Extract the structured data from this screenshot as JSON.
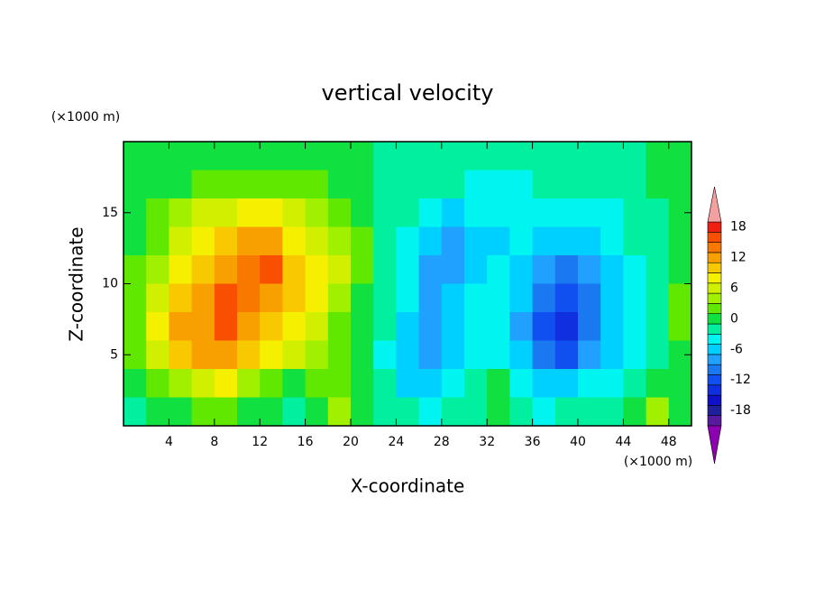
{
  "chart_data": {
    "type": "contour",
    "title": "vertical velocity",
    "xlabel": "X-coordinate",
    "ylabel": "Z-coordinate",
    "x_unit": "(×1000 m)",
    "y_unit": "(×1000 m)",
    "xlim": [
      0,
      50
    ],
    "ylim": [
      0,
      20
    ],
    "xticks": [
      4,
      8,
      12,
      16,
      20,
      24,
      28,
      32,
      36,
      40,
      44,
      48
    ],
    "yticks": [
      5,
      10,
      15
    ],
    "x": [
      1,
      3,
      5,
      7,
      9,
      11,
      13,
      15,
      17,
      19,
      21,
      23,
      25,
      27,
      29,
      31,
      33,
      35,
      37,
      39,
      41,
      43,
      45,
      47,
      49
    ],
    "y": [
      19,
      17,
      15,
      13,
      11,
      9,
      7,
      5,
      3,
      1
    ],
    "z": [
      [
        1,
        1,
        1,
        1,
        1,
        1,
        1,
        1,
        1,
        1,
        1,
        -1,
        -1,
        -1,
        -1,
        -1,
        -1,
        -1,
        -1,
        -1,
        -1,
        -1,
        -1,
        1,
        1
      ],
      [
        1,
        1,
        1,
        3,
        3,
        3,
        3,
        3,
        3,
        1,
        1,
        -1,
        -1,
        -1,
        -1,
        -3,
        -3,
        -3,
        -1,
        -1,
        -1,
        -1,
        -1,
        1,
        1
      ],
      [
        1,
        3,
        5,
        7,
        7,
        9,
        9,
        7,
        5,
        3,
        1,
        -1,
        -1,
        -3,
        -5,
        -3,
        -3,
        -3,
        -3,
        -3,
        -3,
        -3,
        -1,
        -1,
        1
      ],
      [
        1,
        3,
        7,
        9,
        11,
        13,
        13,
        9,
        7,
        5,
        3,
        -1,
        -3,
        -5,
        -7,
        -5,
        -5,
        -3,
        -5,
        -5,
        -5,
        -3,
        -1,
        -1,
        1
      ],
      [
        3,
        5,
        9,
        11,
        13,
        15,
        17,
        11,
        9,
        7,
        3,
        -1,
        -3,
        -7,
        -7,
        -5,
        -3,
        -5,
        -7,
        -9,
        -7,
        -5,
        -3,
        -1,
        1
      ],
      [
        3,
        7,
        11,
        13,
        17,
        15,
        13,
        11,
        9,
        5,
        1,
        -1,
        -3,
        -7,
        -5,
        -3,
        -3,
        -5,
        -9,
        -11,
        -9,
        -5,
        -3,
        -1,
        3
      ],
      [
        3,
        9,
        13,
        13,
        17,
        13,
        11,
        9,
        7,
        3,
        1,
        -1,
        -5,
        -7,
        -5,
        -3,
        -3,
        -7,
        -11,
        -13,
        -9,
        -5,
        -3,
        -1,
        3
      ],
      [
        3,
        7,
        11,
        13,
        13,
        11,
        9,
        7,
        5,
        3,
        1,
        -3,
        -5,
        -7,
        -5,
        -3,
        -3,
        -5,
        -9,
        -11,
        -7,
        -5,
        -3,
        -1,
        1
      ],
      [
        1,
        3,
        5,
        7,
        9,
        5,
        3,
        1,
        3,
        3,
        1,
        -1,
        -5,
        -5,
        -3,
        -1,
        1,
        -3,
        -5,
        -5,
        -3,
        -3,
        -1,
        1,
        1
      ],
      [
        -1,
        1,
        1,
        3,
        3,
        1,
        1,
        -1,
        1,
        5,
        1,
        -1,
        -1,
        -3,
        -1,
        -1,
        1,
        -1,
        -3,
        -1,
        -1,
        -1,
        1,
        5,
        1
      ]
    ],
    "levels": [
      -20,
      -18,
      -16,
      -14,
      -12,
      -10,
      -8,
      -6,
      -4,
      -2,
      0,
      2,
      4,
      6,
      8,
      10,
      12,
      14,
      16,
      18,
      20
    ],
    "colors": [
      "#8c00b0",
      "#5a1aa0",
      "#20209c",
      "#1010c8",
      "#1030e0",
      "#1050f0",
      "#1a78f0",
      "#20a0ff",
      "#00d0ff",
      "#00f5f0",
      "#00f0a0",
      "#10e040",
      "#60e800",
      "#a0f000",
      "#d0f000",
      "#f5f000",
      "#f8c800",
      "#f8a000",
      "#f87800",
      "#f85000",
      "#f02010",
      "#f4a0a0"
    ],
    "colorbar_ticks": [
      18,
      12,
      6,
      0,
      -6,
      -12,
      -18
    ]
  }
}
